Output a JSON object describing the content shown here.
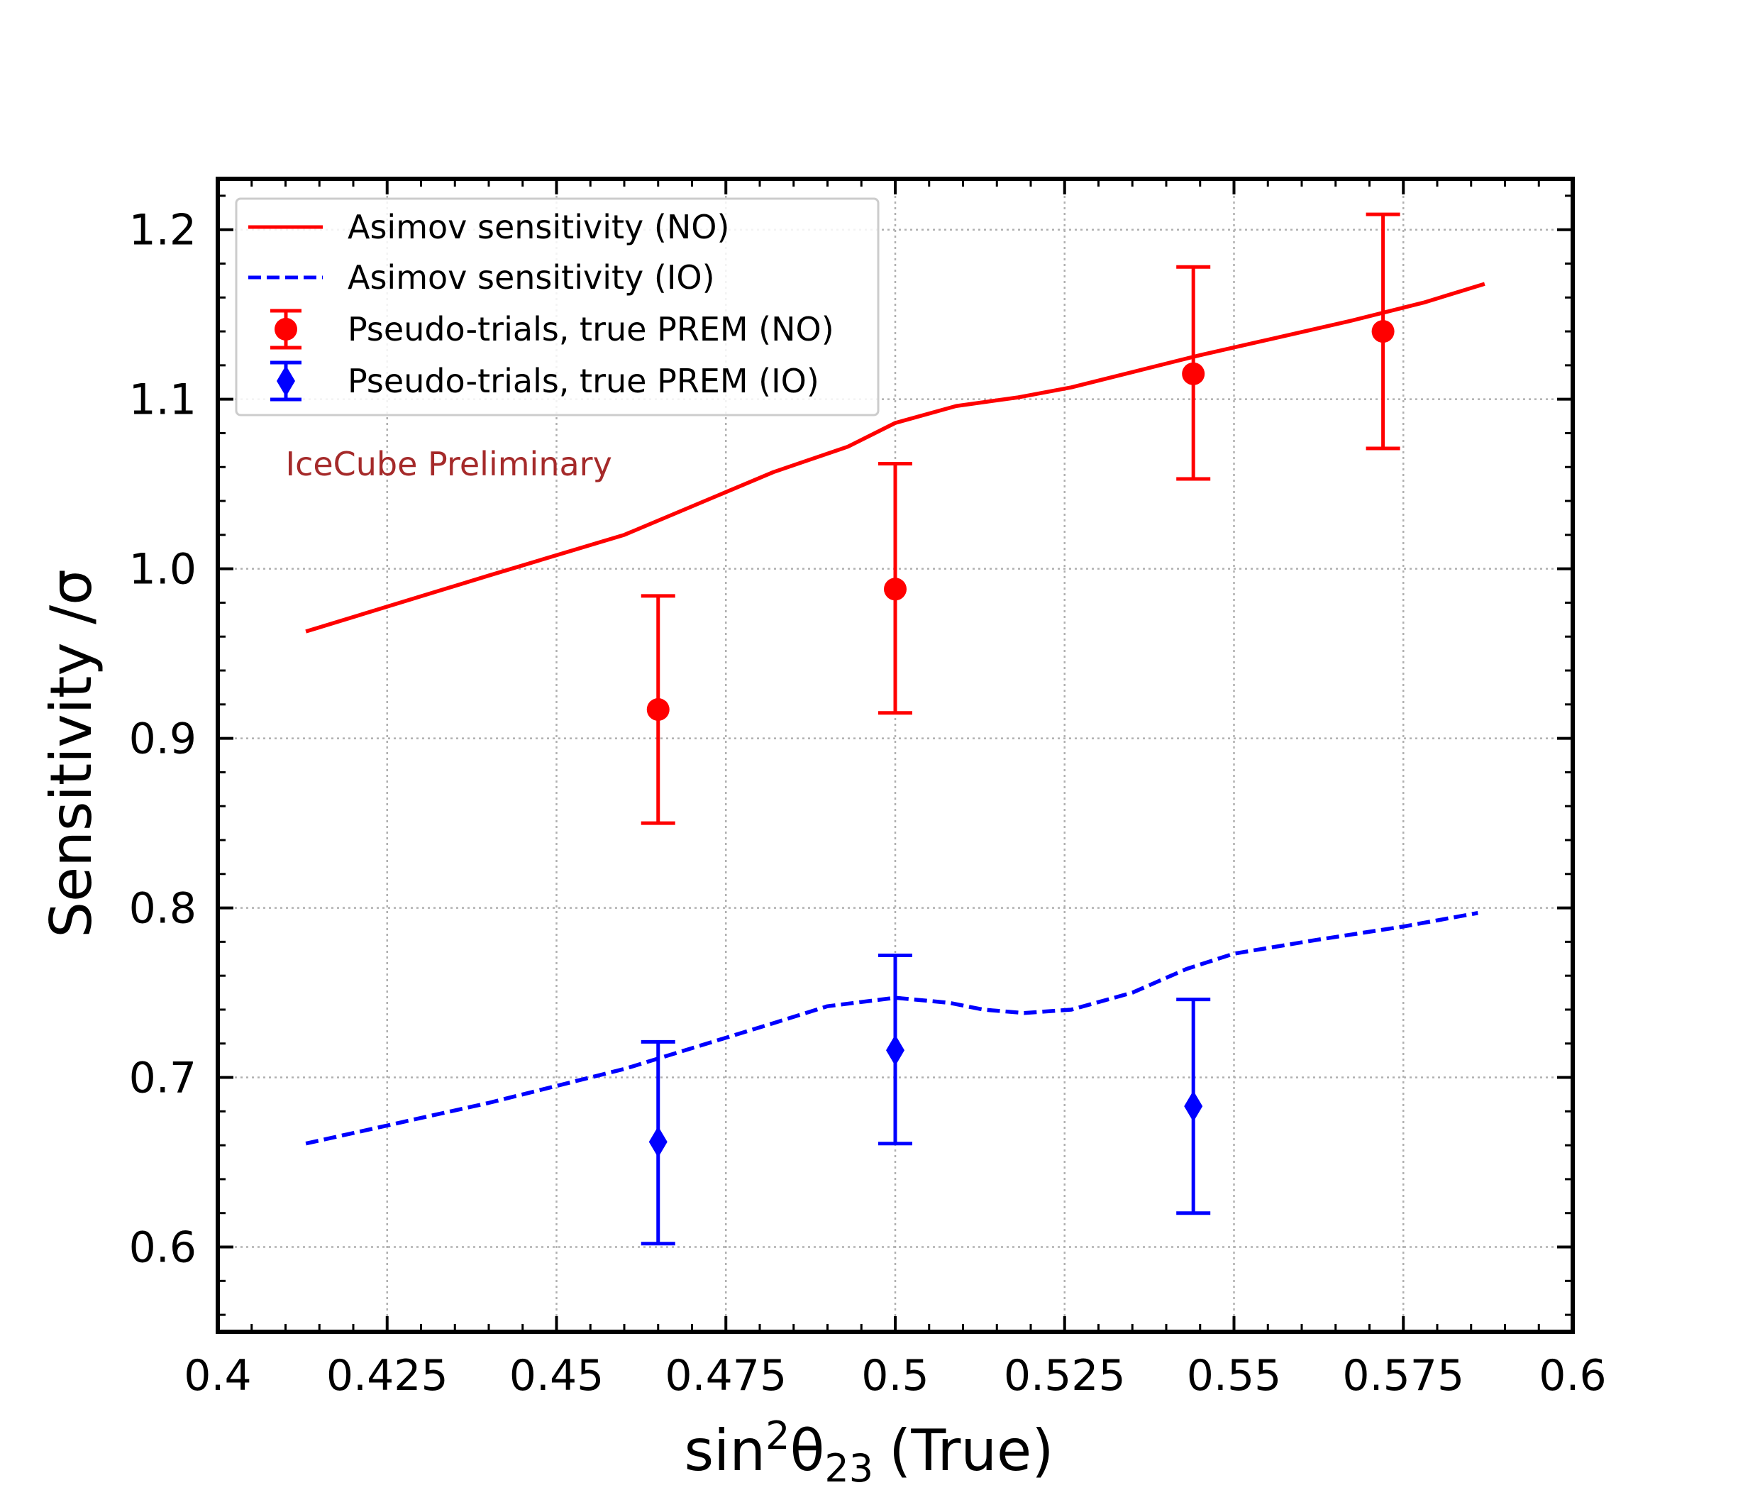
{
  "chart_data": {
    "type": "line",
    "xlabel": {
      "main": "sin",
      "sup": "2",
      "theta": "θ",
      "sub": "23",
      "suffix": "(True)"
    },
    "ylabel": "Sensitivity /σ",
    "xlim": [
      0.4,
      0.6
    ],
    "ylim": [
      0.55,
      1.23
    ],
    "grid": true,
    "legend_position": "upper-left",
    "x_ticks": [
      {
        "value": 0.4,
        "label": "0.4"
      },
      {
        "value": 0.425,
        "label": "0.425"
      },
      {
        "value": 0.45,
        "label": "0.45"
      },
      {
        "value": 0.475,
        "label": "0.475"
      },
      {
        "value": 0.5,
        "label": "0.5"
      },
      {
        "value": 0.525,
        "label": "0.525"
      },
      {
        "value": 0.55,
        "label": "0.55"
      },
      {
        "value": 0.575,
        "label": "0.575"
      },
      {
        "value": 0.6,
        "label": "0.6"
      }
    ],
    "y_ticks": [
      {
        "value": 0.6,
        "label": "0.6"
      },
      {
        "value": 0.7,
        "label": "0.7"
      },
      {
        "value": 0.8,
        "label": "0.8"
      },
      {
        "value": 0.9,
        "label": "0.9"
      },
      {
        "value": 1.0,
        "label": "1.0"
      },
      {
        "value": 1.1,
        "label": "1.1"
      },
      {
        "value": 1.2,
        "label": "1.2"
      }
    ],
    "series": [
      {
        "name": "Asimov sensitivity (NO)",
        "kind": "line",
        "style": "solid",
        "color": "#ff0000",
        "x": [
          0.413,
          0.44,
          0.46,
          0.482,
          0.493,
          0.5,
          0.509,
          0.518,
          0.526,
          0.535,
          0.545,
          0.556,
          0.567,
          0.578,
          0.587
        ],
        "y": [
          0.963,
          0.996,
          1.02,
          1.057,
          1.072,
          1.086,
          1.096,
          1.101,
          1.107,
          1.116,
          1.126,
          1.136,
          1.146,
          1.157,
          1.168
        ]
      },
      {
        "name": "Asimov sensitivity (IO)",
        "kind": "line",
        "style": "dashed",
        "color": "#0000ff",
        "x": [
          0.413,
          0.44,
          0.46,
          0.482,
          0.49,
          0.5,
          0.508,
          0.513,
          0.519,
          0.526,
          0.535,
          0.543,
          0.55,
          0.562,
          0.575,
          0.586
        ],
        "y": [
          0.661,
          0.685,
          0.705,
          0.732,
          0.742,
          0.747,
          0.744,
          0.74,
          0.738,
          0.74,
          0.75,
          0.764,
          0.773,
          0.781,
          0.789,
          0.797
        ]
      },
      {
        "name": "Pseudo-trials, true PREM (NO)",
        "kind": "errorbar",
        "marker": "circle",
        "color": "#ff0000",
        "x": [
          0.465,
          0.5,
          0.544,
          0.572
        ],
        "y": [
          0.917,
          0.988,
          1.115,
          1.14
        ],
        "yerr_low": [
          0.85,
          0.915,
          1.053,
          1.071
        ],
        "yerr_high": [
          0.984,
          1.062,
          1.178,
          1.209
        ]
      },
      {
        "name": "Pseudo-trials, true PREM (IO)",
        "kind": "errorbar",
        "marker": "diamond",
        "color": "#0000ff",
        "x": [
          0.465,
          0.5,
          0.544
        ],
        "y": [
          0.662,
          0.716,
          0.683
        ],
        "yerr_low": [
          0.602,
          0.661,
          0.62
        ],
        "yerr_high": [
          0.721,
          0.772,
          0.746
        ]
      }
    ],
    "annotations": [
      {
        "text": "IceCube Preliminary",
        "color": "#a52a2a",
        "x": 0.41,
        "y": 1.055
      }
    ]
  }
}
